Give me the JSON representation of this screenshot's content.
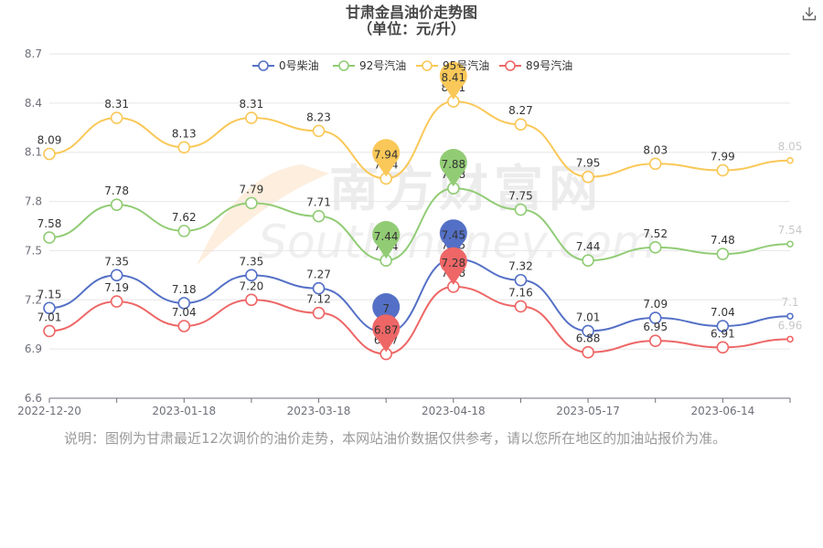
{
  "title": "甘肃金昌油价走势图",
  "subtitle": "（单位：元/升）",
  "note": "说明：图例为甘肃最近12次调价的油价走势，本网站油价数据仅供参考，请以您所在地区的加油站报价为准。",
  "watermark": "南方财富网",
  "watermark_sub": "Southmoney.com",
  "download_icon": "download-icon",
  "chart_data": {
    "type": "line",
    "smooth": true,
    "xlabel": "",
    "ylabel": "",
    "ylim": [
      6.6,
      8.7
    ],
    "yticks": [
      "6.6",
      "6.9",
      "7.2",
      "7.5",
      "7.8",
      "8.1",
      "8.4",
      "8.7"
    ],
    "yticks_values": [
      6.6,
      6.9,
      7.2,
      7.5,
      7.8,
      8.1,
      8.4,
      8.7
    ],
    "x_tick_labels": [
      "2022-12-20",
      "2023-01-18",
      "2023-03-18",
      "2023-04-18",
      "2023-05-17",
      "2023-06-14"
    ],
    "x_tick_indices": [
      0,
      2,
      4,
      6,
      8,
      10
    ],
    "num_points": 12,
    "grid": "horizontal",
    "legend": "top-center",
    "series": [
      {
        "name": "0号柴油",
        "color": "#5470c6",
        "values": [
          7.15,
          7.35,
          7.18,
          7.35,
          7.27,
          7.0,
          7.45,
          7.32,
          7.01,
          7.09,
          7.04,
          7.1
        ],
        "labels": [
          "7.15",
          "7.35",
          "7.18",
          "7.35",
          "7.27",
          "7",
          "7.45",
          "7.32",
          "7.01",
          "7.09",
          "7.04",
          "7.1"
        ],
        "min_marker": {
          "index": 5,
          "label": "7"
        },
        "max_marker": {
          "index": 6,
          "label": "7.45"
        }
      },
      {
        "name": "92号汽油",
        "color": "#91cc75",
        "values": [
          7.58,
          7.78,
          7.62,
          7.79,
          7.71,
          7.44,
          7.88,
          7.75,
          7.44,
          7.52,
          7.48,
          7.54
        ],
        "labels": [
          "7.58",
          "7.78",
          "7.62",
          "7.79",
          "7.71",
          "7.44",
          "7.88",
          "7.75",
          "7.44",
          "7.52",
          "7.48",
          "7.54"
        ],
        "min_marker": {
          "index": 5,
          "label": "7.44"
        },
        "max_marker": {
          "index": 6,
          "label": "7.88"
        }
      },
      {
        "name": "95号汽油",
        "color": "#fac858",
        "values": [
          8.09,
          8.31,
          8.13,
          8.31,
          8.23,
          7.94,
          8.41,
          8.27,
          7.95,
          8.03,
          7.99,
          8.05
        ],
        "labels": [
          "8.09",
          "8.31",
          "8.13",
          "8.31",
          "8.23",
          "7.94",
          "8.41",
          "8.27",
          "7.95",
          "8.03",
          "7.99",
          "8.05"
        ],
        "min_marker": {
          "index": 5,
          "label": "7.94"
        },
        "max_marker": {
          "index": 6,
          "label": "8.41"
        }
      },
      {
        "name": "89号汽油",
        "color": "#ee6666",
        "values": [
          7.01,
          7.19,
          7.04,
          7.2,
          7.12,
          6.87,
          7.28,
          7.16,
          6.88,
          6.95,
          6.91,
          6.96
        ],
        "labels": [
          "7.01",
          "7.19",
          "7.04",
          "7.20",
          "7.12",
          "6.87",
          "7.28",
          "7.16",
          "6.88",
          "6.95",
          "6.91",
          "6.96"
        ],
        "min_marker": {
          "index": 5,
          "label": "6.87"
        },
        "max_marker": {
          "index": 6,
          "label": "7.28"
        }
      }
    ]
  }
}
